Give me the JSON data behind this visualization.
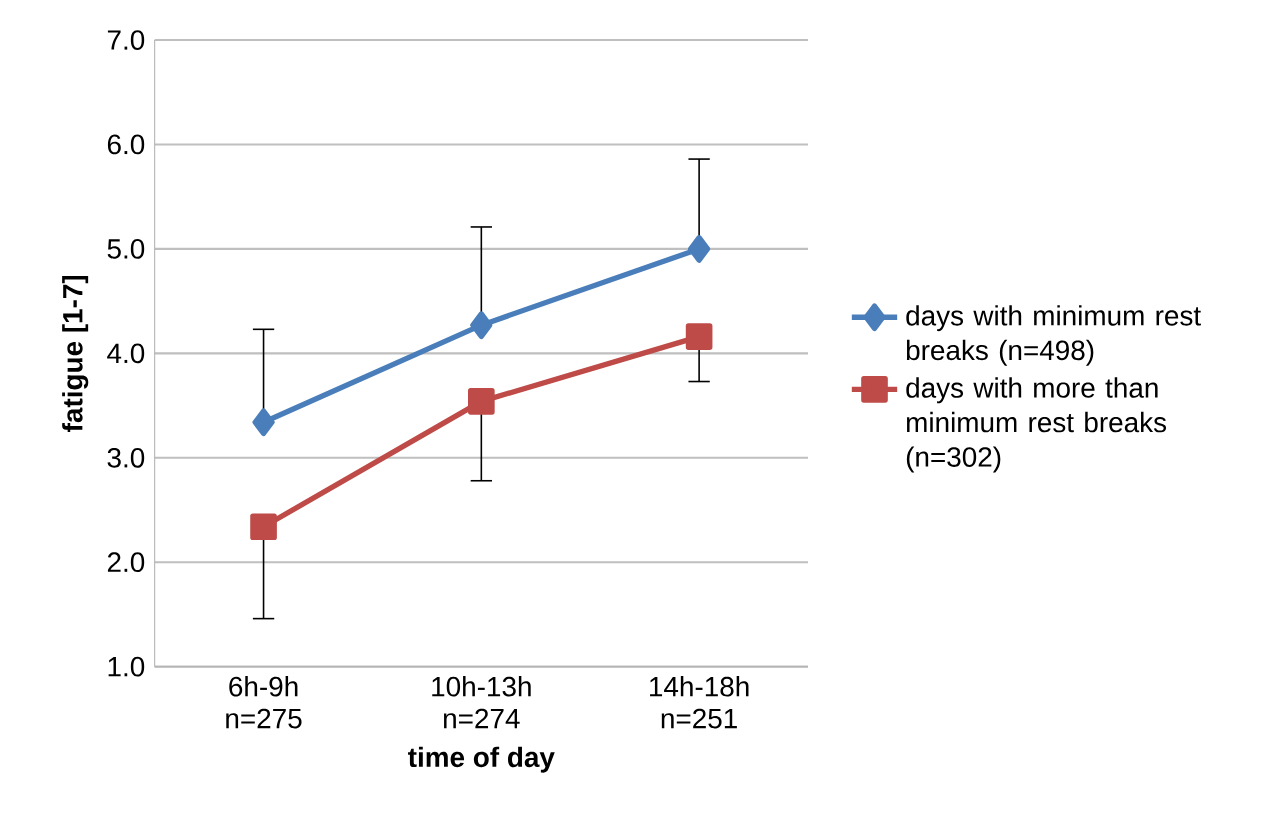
{
  "chart_data": {
    "type": "line",
    "xlabel": "time of day",
    "ylabel": "fatigue [1-7]",
    "categories": [
      "6h-9h n=275",
      "10h-13h n=274",
      "14h-18h n=251"
    ],
    "ylim": [
      1,
      7
    ],
    "yticks": [
      {
        "value": 1,
        "label": "1.0"
      },
      {
        "value": 2,
        "label": "2.0"
      },
      {
        "value": 3,
        "label": "3.0"
      },
      {
        "value": 4,
        "label": "4.0"
      },
      {
        "value": 5,
        "label": "5.0"
      },
      {
        "value": 6,
        "label": "6.0"
      },
      {
        "value": 7,
        "label": "7.0"
      }
    ],
    "grid": "y",
    "legend": "right",
    "line_style": "solid",
    "series": [
      {
        "name": "days with minimum rest breaks (n=498)",
        "color": "#4a7ebb",
        "marker": "diamond",
        "values": [
          3.34,
          4.27,
          5.0
        ],
        "errors": [
          [
            3.34,
            4.23
          ],
          [
            4.27,
            5.21
          ],
          [
            5.0,
            5.86
          ]
        ]
      },
      {
        "name": "days with more than minimum rest breaks (n=302)",
        "color": "#be4b48",
        "marker": "square",
        "values": [
          2.34,
          3.54,
          4.16
        ],
        "errors": [
          [
            1.46,
            2.34
          ],
          [
            2.78,
            3.54
          ],
          [
            3.73,
            4.16
          ]
        ]
      }
    ]
  }
}
